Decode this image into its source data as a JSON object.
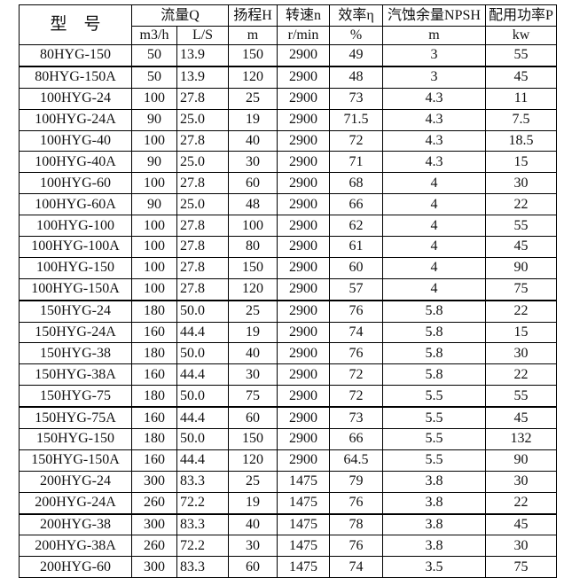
{
  "headers": {
    "model": "型　号",
    "flow": "流量Q",
    "head": "扬程H",
    "speed": "转速n",
    "eff": "效率η",
    "npsh": "汽蚀余量NPSH",
    "power": "配用功率P"
  },
  "units": [
    "m3/h",
    "L/S",
    "m",
    "r/min",
    "%",
    "m",
    "kw"
  ],
  "rows": [
    [
      "80HYG-150",
      "50",
      "13.9",
      "150",
      "2900",
      "49",
      "3",
      "55"
    ],
    [
      "80HYG-150A",
      "50",
      "13.9",
      "120",
      "2900",
      "48",
      "3",
      "45"
    ],
    [
      "100HYG-24",
      "100",
      "27.8",
      "25",
      "2900",
      "73",
      "4.3",
      "11"
    ],
    [
      "100HYG-24A",
      "90",
      "25.0",
      "19",
      "2900",
      "71.5",
      "4.3",
      "7.5"
    ],
    [
      "100HYG-40",
      "100",
      "27.8",
      "40",
      "2900",
      "72",
      "4.3",
      "18.5"
    ],
    [
      "100HYG-40A",
      "90",
      "25.0",
      "30",
      "2900",
      "71",
      "4.3",
      "15"
    ],
    [
      "100HYG-60",
      "100",
      "27.8",
      "60",
      "2900",
      "68",
      "4",
      "30"
    ],
    [
      "100HYG-60A",
      "90",
      "25.0",
      "48",
      "2900",
      "66",
      "4",
      "22"
    ],
    [
      "100HYG-100",
      "100",
      "27.8",
      "100",
      "2900",
      "62",
      "4",
      "55"
    ],
    [
      "100HYG-100A",
      "100",
      "27.8",
      "80",
      "2900",
      "61",
      "4",
      "45"
    ],
    [
      "100HYG-150",
      "100",
      "27.8",
      "150",
      "2900",
      "60",
      "4",
      "90"
    ],
    [
      "100HYG-150A",
      "100",
      "27.8",
      "120",
      "2900",
      "57",
      "4",
      "75"
    ],
    [
      "150HYG-24",
      "180",
      "50.0",
      "25",
      "2900",
      "76",
      "5.8",
      "22"
    ],
    [
      "150HYG-24A",
      "160",
      "44.4",
      "19",
      "2900",
      "74",
      "5.8",
      "15"
    ],
    [
      "150HYG-38",
      "180",
      "50.0",
      "40",
      "2900",
      "76",
      "5.8",
      "30"
    ],
    [
      "150HYG-38A",
      "160",
      "44.4",
      "30",
      "2900",
      "72",
      "5.8",
      "22"
    ],
    [
      "150HYG-75",
      "180",
      "50.0",
      "75",
      "2900",
      "72",
      "5.5",
      "55"
    ],
    [
      "150HYG-75A",
      "160",
      "44.4",
      "60",
      "2900",
      "73",
      "5.5",
      "45"
    ],
    [
      "150HYG-150",
      "180",
      "50.0",
      "150",
      "2900",
      "66",
      "5.5",
      "132"
    ],
    [
      "150HYG-150A",
      "160",
      "44.4",
      "120",
      "2900",
      "64.5",
      "5.5",
      "90"
    ],
    [
      "200HYG-24",
      "300",
      "83.3",
      "25",
      "1475",
      "79",
      "3.8",
      "30"
    ],
    [
      "200HYG-24A",
      "260",
      "72.2",
      "19",
      "1475",
      "76",
      "3.8",
      "22"
    ],
    [
      "200HYG-38",
      "300",
      "83.3",
      "40",
      "1475",
      "78",
      "3.8",
      "45"
    ],
    [
      "200HYG-38A",
      "260",
      "72.2",
      "30",
      "1475",
      "76",
      "3.8",
      "30"
    ],
    [
      "200HYG-60",
      "300",
      "83.3",
      "60",
      "1475",
      "74",
      "3.5",
      "75"
    ]
  ]
}
